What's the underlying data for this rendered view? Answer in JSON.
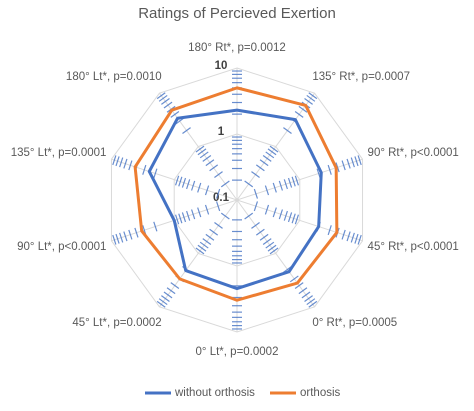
{
  "chart_data": {
    "type": "radar",
    "title": "Ratings of Percieved Exertion",
    "categories": [
      "180° Rt*, p=0.0012",
      "135° Rt*, p=0.0007",
      "90° Rt*, p<0.0001",
      "45° Rt*, p<0.0001",
      "0° Rt*, p=0.0005",
      "0° Lt*, p=0.0002",
      "45° Lt*, p=0.0002",
      "90° Lt*, p<0.0001",
      "135° Lt*, p=0.0001",
      "180° Lt*, p=0.0010"
    ],
    "series": [
      {
        "name": "without orthosis",
        "color": "#4472c4",
        "values": [
          2.3,
          3.2,
          2.2,
          2.0,
          2.2,
          2.2,
          2.1,
          1.0,
          2.5,
          3.4
        ]
      },
      {
        "name": "orthosis",
        "color": "#ed7d31",
        "values": [
          5.0,
          5.9,
          3.8,
          3.9,
          3.6,
          3.3,
          3.0,
          3.3,
          4.2,
          4.8
        ]
      }
    ],
    "ylim": [
      0.1,
      10
    ],
    "yticks": [
      0.1,
      1,
      10
    ],
    "log_scale": true,
    "grid": true,
    "legend": "bottom"
  }
}
